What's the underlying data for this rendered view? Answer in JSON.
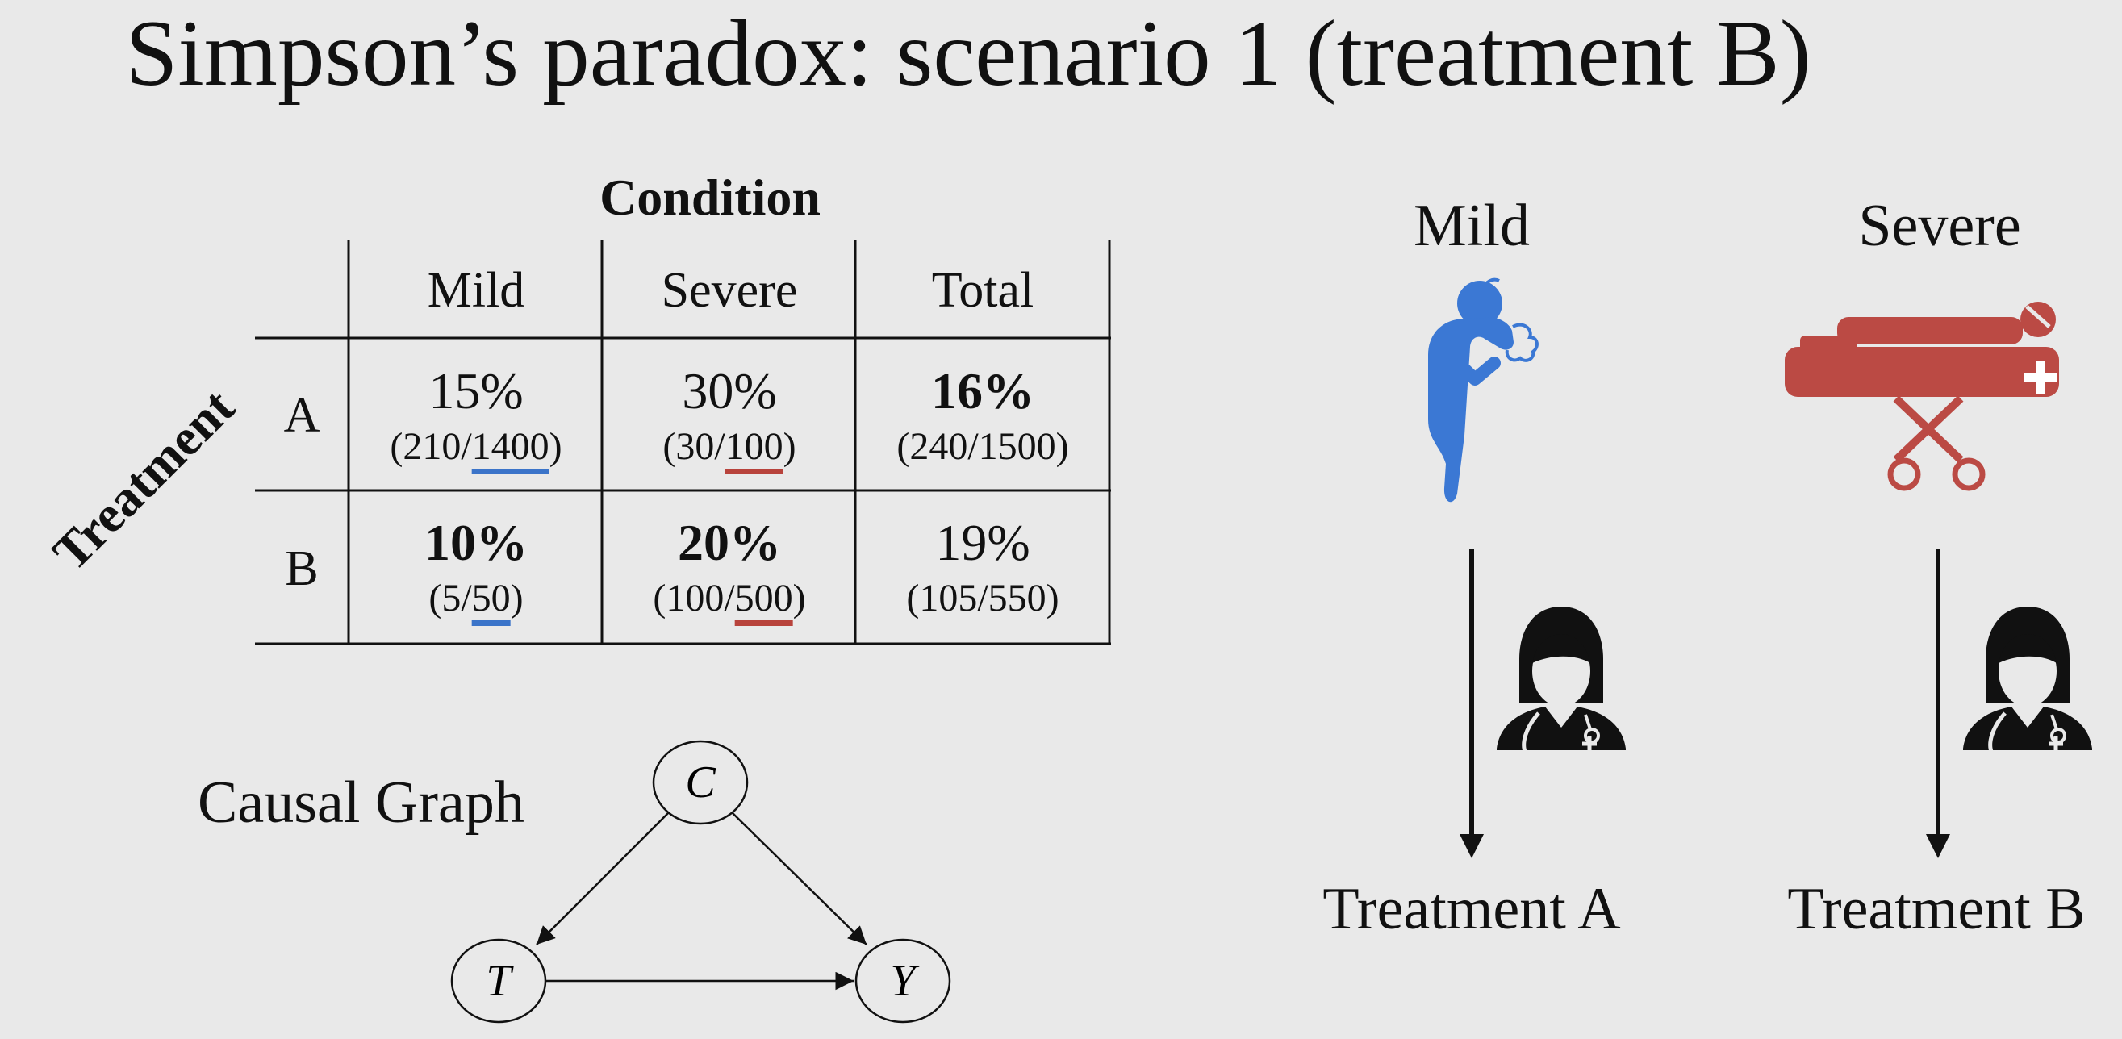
{
  "title": "Simpson’s paradox: scenario 1 (treatment B)",
  "table": {
    "column_group_header": "Condition",
    "row_group_header": "Treatment",
    "columns": [
      "Mild",
      "Severe",
      "Total"
    ],
    "rows": [
      {
        "label": "A",
        "cells": [
          {
            "pct": "15%",
            "count_prefix": "(210/",
            "count_denominator": "1400",
            "count_suffix": ")",
            "bold": false,
            "underline": "blue"
          },
          {
            "pct": "30%",
            "count_prefix": "(30/",
            "count_denominator": "100",
            "count_suffix": ")",
            "bold": false,
            "underline": "red"
          },
          {
            "pct": "16%",
            "count": "(240/1500)",
            "bold": true
          }
        ]
      },
      {
        "label": "B",
        "cells": [
          {
            "pct": "10%",
            "count_prefix": "(5/",
            "count_denominator": "50",
            "count_suffix": ")",
            "bold": true,
            "underline": "blue"
          },
          {
            "pct": "20%",
            "count_prefix": "(100/",
            "count_denominator": "500",
            "count_suffix": ")",
            "bold": true,
            "underline": "red"
          },
          {
            "pct": "19%",
            "count": "(105/550)",
            "bold": false
          }
        ]
      }
    ]
  },
  "causal_graph": {
    "label": "Causal Graph",
    "nodes": {
      "c": "C",
      "t": "T",
      "y": "Y"
    }
  },
  "illustration": {
    "mild_label": "Mild",
    "severe_label": "Severe",
    "treatment_a_label": "Treatment A",
    "treatment_b_label": "Treatment B",
    "mild_icon": "coughing-person-icon",
    "severe_icon": "stretcher-patient-icon",
    "doctor_icon": "doctor-icon",
    "colors": {
      "mild": "#3b78d4",
      "severe": "#bb4a44",
      "underline_blue": "#3b74c9",
      "underline_red": "#b8433c"
    }
  }
}
